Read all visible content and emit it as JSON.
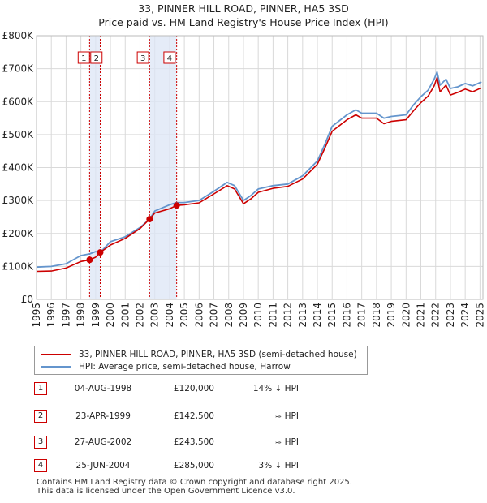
{
  "chart_data": {
    "type": "line",
    "title": "33, PINNER HILL ROAD, PINNER, HA5 3SD",
    "subtitle": "Price paid vs. HM Land Registry's House Price Index (HPI)",
    "x_range": [
      1995,
      2025.2
    ],
    "y_range": [
      0,
      800000
    ],
    "y_ticks": [
      0,
      100000,
      200000,
      300000,
      400000,
      500000,
      600000,
      700000,
      800000
    ],
    "y_tick_labels": [
      "£0",
      "£100K",
      "£200K",
      "£300K",
      "£400K",
      "£500K",
      "£600K",
      "£700K",
      "£800K"
    ],
    "x_ticks": [
      "1995",
      "1996",
      "1997",
      "1998",
      "1999",
      "2000",
      "2001",
      "2002",
      "2003",
      "2004",
      "2005",
      "2006",
      "2007",
      "2008",
      "2009",
      "2010",
      "2011",
      "2012",
      "2013",
      "2014",
      "2015",
      "2016",
      "2017",
      "2018",
      "2019",
      "2020",
      "2021",
      "2022",
      "2023",
      "2024",
      "2025"
    ],
    "grid": true,
    "series": [
      {
        "name": "HPI: Average price, semi-detached house, Harrow",
        "color": "#6495cd",
        "points": [
          [
            1995,
            98000
          ],
          [
            1996,
            100000
          ],
          [
            1997,
            108000
          ],
          [
            1998,
            133000
          ],
          [
            1998.6,
            138000
          ],
          [
            1999,
            145000
          ],
          [
            1999.3,
            142000
          ],
          [
            2000,
            175000
          ],
          [
            2001,
            190000
          ],
          [
            2002,
            218000
          ],
          [
            2002.65,
            243500
          ],
          [
            2003,
            268000
          ],
          [
            2004,
            287000
          ],
          [
            2004.5,
            294000
          ],
          [
            2005,
            294000
          ],
          [
            2006,
            300000
          ],
          [
            2007,
            328000
          ],
          [
            2007.9,
            355000
          ],
          [
            2008.4,
            345000
          ],
          [
            2009,
            300000
          ],
          [
            2009.5,
            315000
          ],
          [
            2010,
            335000
          ],
          [
            2011,
            345000
          ],
          [
            2012,
            350000
          ],
          [
            2013,
            375000
          ],
          [
            2014,
            420000
          ],
          [
            2014.5,
            470000
          ],
          [
            2015,
            525000
          ],
          [
            2016,
            560000
          ],
          [
            2016.6,
            575000
          ],
          [
            2017,
            565000
          ],
          [
            2018,
            565000
          ],
          [
            2018.5,
            550000
          ],
          [
            2019,
            555000
          ],
          [
            2020,
            560000
          ],
          [
            2020.5,
            590000
          ],
          [
            2021,
            615000
          ],
          [
            2021.5,
            635000
          ],
          [
            2021.9,
            668000
          ],
          [
            2022.1,
            690000
          ],
          [
            2022.3,
            650000
          ],
          [
            2022.7,
            668000
          ],
          [
            2023,
            640000
          ],
          [
            2023.5,
            645000
          ],
          [
            2024,
            655000
          ],
          [
            2024.5,
            648000
          ],
          [
            2025.1,
            660000
          ]
        ]
      },
      {
        "name": "33, PINNER HILL ROAD, PINNER, HA5 3SD (semi-detached house)",
        "color": "#cc0000",
        "points": [
          [
            1995,
            85000
          ],
          [
            1996,
            86000
          ],
          [
            1997,
            95000
          ],
          [
            1998,
            115000
          ],
          [
            1998.59,
            120000
          ],
          [
            1999,
            128000
          ],
          [
            1999.31,
            142500
          ],
          [
            2000,
            165000
          ],
          [
            2001,
            185000
          ],
          [
            2002,
            215000
          ],
          [
            2002.65,
            243500
          ],
          [
            2003,
            262000
          ],
          [
            2004,
            275000
          ],
          [
            2004.48,
            285000
          ],
          [
            2005,
            287000
          ],
          [
            2006,
            293000
          ],
          [
            2007,
            320000
          ],
          [
            2007.9,
            345000
          ],
          [
            2008.4,
            335000
          ],
          [
            2009,
            290000
          ],
          [
            2009.5,
            305000
          ],
          [
            2010,
            325000
          ],
          [
            2011,
            337000
          ],
          [
            2012,
            343000
          ],
          [
            2013,
            365000
          ],
          [
            2014,
            410000
          ],
          [
            2014.5,
            458000
          ],
          [
            2015,
            510000
          ],
          [
            2016,
            545000
          ],
          [
            2016.6,
            560000
          ],
          [
            2017,
            550000
          ],
          [
            2018,
            550000
          ],
          [
            2018.5,
            533000
          ],
          [
            2019,
            540000
          ],
          [
            2020,
            545000
          ],
          [
            2020.5,
            572000
          ],
          [
            2021,
            597000
          ],
          [
            2021.5,
            617000
          ],
          [
            2021.9,
            648000
          ],
          [
            2022.1,
            673000
          ],
          [
            2022.3,
            630000
          ],
          [
            2022.7,
            650000
          ],
          [
            2023,
            620000
          ],
          [
            2023.5,
            628000
          ],
          [
            2024,
            638000
          ],
          [
            2024.5,
            630000
          ],
          [
            2025.1,
            642000
          ]
        ]
      }
    ],
    "sales": [
      {
        "num": "1",
        "x": 1998.59,
        "price": 120000,
        "date": "04-AUG-1998",
        "price_label": "£120,000",
        "hpi": "14% ↓ HPI"
      },
      {
        "num": "2",
        "x": 1999.31,
        "price": 142500,
        "date": "23-APR-1999",
        "price_label": "£142,500",
        "hpi": "≈ HPI"
      },
      {
        "num": "3",
        "x": 2002.65,
        "price": 243500,
        "date": "27-AUG-2002",
        "price_label": "£243,500",
        "hpi": "≈ HPI"
      },
      {
        "num": "4",
        "x": 2004.48,
        "price": 285000,
        "date": "25-JUN-2004",
        "price_label": "£285,000",
        "hpi": "3% ↓ HPI"
      }
    ],
    "shaded_ranges": [
      [
        1998.59,
        1999.31
      ],
      [
        2002.65,
        2004.48
      ]
    ]
  },
  "legend": {
    "property_label": "33, PINNER HILL ROAD, PINNER, HA5 3SD (semi-detached house)",
    "hpi_label": "HPI: Average price, semi-detached house, Harrow",
    "property_color": "#cc0000",
    "hpi_color": "#6495cd"
  },
  "footer": {
    "line1": "Contains HM Land Registry data © Crown copyright and database right 2025.",
    "line2": "This data is licensed under the Open Government Licence v3.0."
  }
}
